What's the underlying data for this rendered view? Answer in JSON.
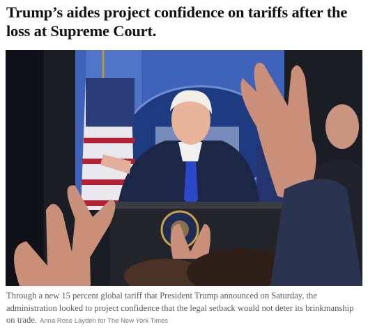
{
  "headline": "Trump’s aides project confidence on tariffs after the loss at Supreme Court.",
  "caption": {
    "text": "Through a new 15 percent global tariff that President Trump announced on Saturday, the administration looked to project confidence that the legal setback would not deter its brinkmanship on trade.",
    "credit": "Anna Rose Layden for The New York Times"
  }
}
